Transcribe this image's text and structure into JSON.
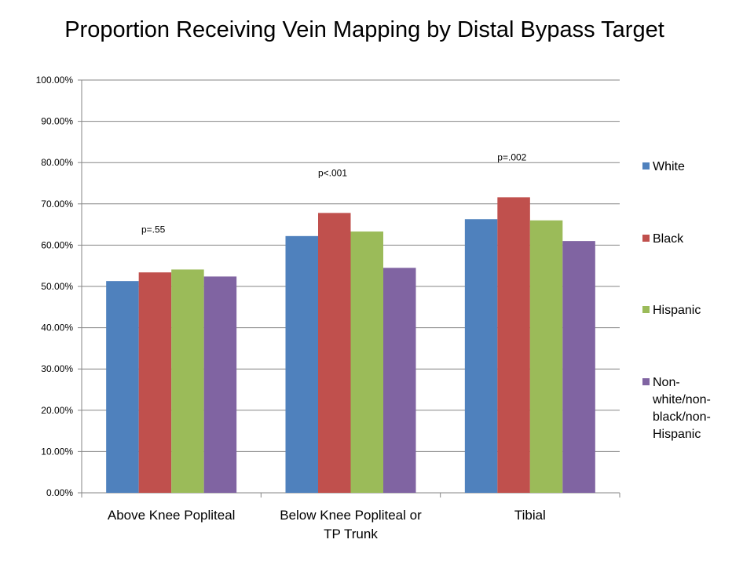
{
  "chart_data": {
    "type": "bar",
    "title": "Proportion Receiving Vein Mapping by Distal Bypass Target",
    "xlabel": "",
    "ylabel": "",
    "ylim": [
      0,
      1
    ],
    "ytick_labels": [
      "0.00%",
      "10.00%",
      "20.00%",
      "30.00%",
      "40.00%",
      "50.00%",
      "60.00%",
      "70.00%",
      "80.00%",
      "90.00%",
      "100.00%"
    ],
    "grid": true,
    "legend_position": "right",
    "categories": [
      [
        "Above Knee Popliteal"
      ],
      [
        "Below Knee Popliteal or",
        "TP Trunk"
      ],
      [
        "Tibial"
      ]
    ],
    "annotations": [
      "p=.55",
      "p<.001",
      "p=.002"
    ],
    "series": [
      {
        "name": [
          "White"
        ],
        "color": "#4F81BD",
        "values": [
          0.513,
          0.622,
          0.663
        ]
      },
      {
        "name": [
          "Black"
        ],
        "color": "#C0504D",
        "values": [
          0.534,
          0.678,
          0.716
        ]
      },
      {
        "name": [
          "Hispanic"
        ],
        "color": "#9BBB59",
        "values": [
          0.541,
          0.633,
          0.66
        ]
      },
      {
        "name": [
          "Non-",
          "white/non-",
          "black/non-",
          "Hispanic"
        ],
        "color": "#8064A2",
        "values": [
          0.524,
          0.545,
          0.61
        ]
      }
    ]
  }
}
